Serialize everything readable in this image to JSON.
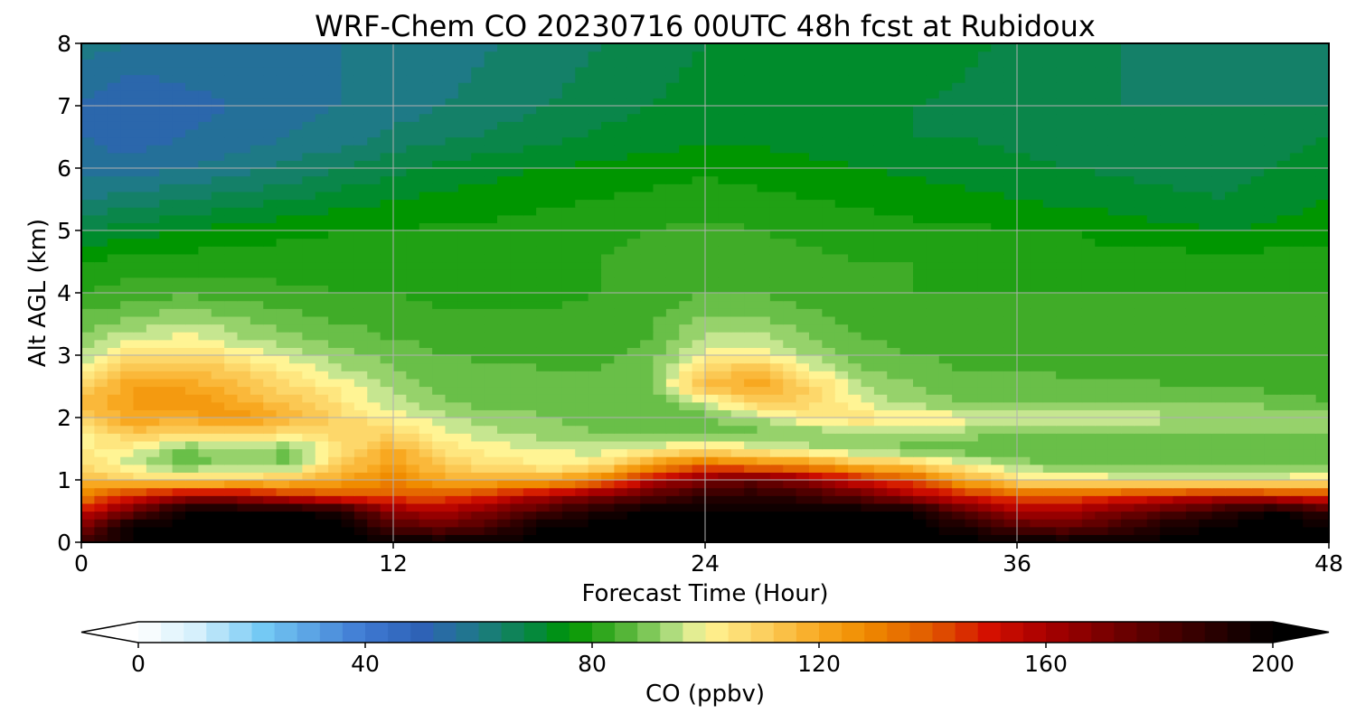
{
  "chart_data": {
    "type": "heatmap",
    "title": "WRF-Chem CO  20230716 00UTC 48h fcst at Rubidoux",
    "xlabel": "Forecast Time (Hour)",
    "ylabel": "Alt AGL (km)",
    "xlim": [
      0,
      48
    ],
    "ylim": [
      0,
      8
    ],
    "x_ticks": [
      0,
      12,
      24,
      36,
      48
    ],
    "y_ticks": [
      0,
      1,
      2,
      3,
      4,
      5,
      6,
      7,
      8
    ],
    "grid": true,
    "x": [
      0,
      2,
      4,
      6,
      8,
      10,
      12,
      14,
      16,
      18,
      20,
      22,
      24,
      26,
      28,
      30,
      32,
      34,
      36,
      38,
      40,
      42,
      44,
      46,
      48
    ],
    "y": [
      0,
      0.25,
      0.5,
      0.75,
      1,
      1.25,
      1.5,
      1.75,
      2,
      2.25,
      2.5,
      2.75,
      3,
      3.25,
      3.5,
      3.75,
      4,
      4.5,
      5,
      5.5,
      6,
      6.5,
      7,
      7.5,
      8
    ],
    "z": [
      [
        185,
        200,
        200,
        200,
        200,
        200,
        200,
        200,
        200,
        200,
        200,
        200,
        200,
        200,
        200,
        200,
        200,
        200,
        200,
        200,
        200,
        200,
        200,
        200,
        200
      ],
      [
        170,
        200,
        200,
        200,
        200,
        200,
        180,
        175,
        185,
        200,
        200,
        200,
        200,
        200,
        200,
        200,
        200,
        195,
        180,
        175,
        185,
        195,
        200,
        200,
        200
      ],
      [
        150,
        175,
        200,
        200,
        200,
        195,
        165,
        160,
        170,
        185,
        195,
        200,
        200,
        200,
        200,
        200,
        200,
        175,
        160,
        160,
        170,
        180,
        190,
        200,
        185
      ],
      [
        130,
        150,
        160,
        160,
        150,
        140,
        140,
        140,
        150,
        160,
        170,
        180,
        190,
        190,
        185,
        175,
        160,
        150,
        140,
        140,
        145,
        150,
        155,
        150,
        145
      ],
      [
        115,
        110,
        108,
        110,
        112,
        122,
        128,
        120,
        118,
        120,
        130,
        155,
        170,
        175,
        165,
        150,
        140,
        120,
        105,
        102,
        100,
        100,
        100,
        100,
        102
      ],
      [
        108,
        95,
        88,
        92,
        90,
        110,
        125,
        110,
        105,
        100,
        105,
        125,
        135,
        130,
        125,
        115,
        110,
        100,
        92,
        90,
        90,
        90,
        90,
        90,
        90
      ],
      [
        102,
        100,
        88,
        94,
        88,
        105,
        118,
        105,
        100,
        98,
        95,
        100,
        105,
        100,
        95,
        90,
        88,
        86,
        85,
        85,
        85,
        85,
        85,
        85,
        85
      ],
      [
        100,
        112,
        108,
        110,
        105,
        110,
        108,
        98,
        95,
        92,
        90,
        90,
        90,
        88,
        90,
        95,
        95,
        92,
        90,
        90,
        90,
        90,
        90,
        90,
        90
      ],
      [
        110,
        122,
        120,
        125,
        118,
        108,
        100,
        95,
        92,
        90,
        88,
        88,
        88,
        95,
        102,
        105,
        102,
        100,
        100,
        98,
        96,
        95,
        95,
        95,
        92
      ],
      [
        115,
        122,
        125,
        120,
        112,
        104,
        95,
        90,
        88,
        88,
        88,
        88,
        95,
        110,
        108,
        98,
        92,
        90,
        90,
        90,
        90,
        90,
        90,
        88,
        86
      ],
      [
        110,
        122,
        122,
        115,
        108,
        100,
        94,
        88,
        88,
        88,
        88,
        90,
        115,
        122,
        110,
        95,
        90,
        88,
        88,
        88,
        88,
        86,
        86,
        85,
        84
      ],
      [
        100,
        115,
        116,
        110,
        102,
        95,
        90,
        88,
        87,
        86,
        86,
        90,
        110,
        115,
        100,
        90,
        88,
        86,
        86,
        85,
        85,
        84,
        84,
        84,
        82
      ],
      [
        95,
        105,
        108,
        102,
        96,
        92,
        88,
        86,
        85,
        85,
        85,
        88,
        100,
        102,
        94,
        88,
        86,
        85,
        85,
        84,
        84,
        82,
        82,
        82,
        82
      ],
      [
        92,
        98,
        100,
        95,
        92,
        88,
        86,
        85,
        84,
        84,
        84,
        86,
        95,
        96,
        90,
        86,
        85,
        84,
        83,
        82,
        82,
        82,
        82,
        82,
        82
      ],
      [
        88,
        92,
        95,
        92,
        88,
        86,
        85,
        84,
        83,
        83,
        84,
        86,
        92,
        92,
        88,
        85,
        84,
        83,
        82,
        82,
        82,
        82,
        82,
        82,
        82
      ],
      [
        85,
        88,
        90,
        88,
        86,
        84,
        83,
        82,
        82,
        82,
        83,
        85,
        88,
        88,
        86,
        84,
        83,
        82,
        82,
        82,
        82,
        82,
        82,
        82,
        82
      ],
      [
        82,
        84,
        85,
        84,
        83,
        82,
        82,
        81,
        81,
        81,
        82,
        84,
        86,
        86,
        84,
        83,
        82,
        82,
        82,
        82,
        82,
        82,
        82,
        82,
        82
      ],
      [
        78,
        80,
        80,
        80,
        80,
        80,
        80,
        80,
        80,
        81,
        82,
        83,
        85,
        84,
        83,
        82,
        82,
        81,
        80,
        80,
        80,
        80,
        80,
        80,
        80
      ],
      [
        70,
        72,
        74,
        76,
        77,
        78,
        78,
        79,
        79,
        80,
        81,
        82,
        83,
        82,
        81,
        80,
        79,
        79,
        78,
        78,
        76,
        75,
        74,
        75,
        77
      ],
      [
        62,
        64,
        66,
        68,
        70,
        72,
        74,
        75,
        76,
        77,
        78,
        79,
        80,
        79,
        78,
        77,
        76,
        75,
        74,
        73,
        72,
        71,
        70,
        72,
        74
      ],
      [
        56,
        56,
        58,
        60,
        63,
        66,
        69,
        71,
        73,
        74,
        75,
        76,
        77,
        76,
        75,
        74,
        73,
        72,
        71,
        70,
        69,
        68,
        68,
        70,
        72
      ],
      [
        54,
        52,
        54,
        56,
        58,
        60,
        63,
        65,
        67,
        69,
        71,
        72,
        73,
        73,
        72,
        71,
        70,
        70,
        69,
        68,
        67,
        66,
        67,
        68,
        70
      ],
      [
        54,
        50,
        52,
        54,
        56,
        58,
        60,
        62,
        64,
        66,
        68,
        70,
        72,
        73,
        72,
        71,
        70,
        69,
        68,
        67,
        66,
        66,
        66,
        66,
        66
      ],
      [
        56,
        54,
        55,
        56,
        57,
        58,
        59,
        61,
        63,
        65,
        67,
        69,
        71,
        73,
        73,
        72,
        71,
        70,
        68,
        67,
        66,
        65,
        64,
        63,
        63
      ],
      [
        60,
        58,
        58,
        58,
        58,
        58,
        58,
        60,
        62,
        64,
        66,
        68,
        70,
        72,
        74,
        74,
        73,
        71,
        69,
        67,
        66,
        64,
        63,
        62,
        62
      ]
    ],
    "colorbar": {
      "label": "CO  (ppbv)",
      "range": [
        0,
        200
      ],
      "ticks": [
        0,
        40,
        80,
        120,
        160,
        200
      ],
      "extend": "both",
      "stops": [
        {
          "v": 0,
          "c": "#ffffff"
        },
        {
          "v": 10,
          "c": "#d6f0fc"
        },
        {
          "v": 22,
          "c": "#74c9f4"
        },
        {
          "v": 40,
          "c": "#3e78d2"
        },
        {
          "v": 50,
          "c": "#2e62b6"
        },
        {
          "v": 60,
          "c": "#1e7a86"
        },
        {
          "v": 72,
          "c": "#008c2c"
        },
        {
          "v": 76,
          "c": "#009600"
        },
        {
          "v": 84,
          "c": "#40ac28"
        },
        {
          "v": 90,
          "c": "#7ec858"
        },
        {
          "v": 96,
          "c": "#c6e690"
        },
        {
          "v": 100,
          "c": "#fff494"
        },
        {
          "v": 110,
          "c": "#fcd060"
        },
        {
          "v": 120,
          "c": "#f8a820"
        },
        {
          "v": 128,
          "c": "#f08c00"
        },
        {
          "v": 140,
          "c": "#e05800"
        },
        {
          "v": 150,
          "c": "#d41000"
        },
        {
          "v": 160,
          "c": "#a80000"
        },
        {
          "v": 180,
          "c": "#500000"
        },
        {
          "v": 200,
          "c": "#000000"
        }
      ]
    }
  }
}
